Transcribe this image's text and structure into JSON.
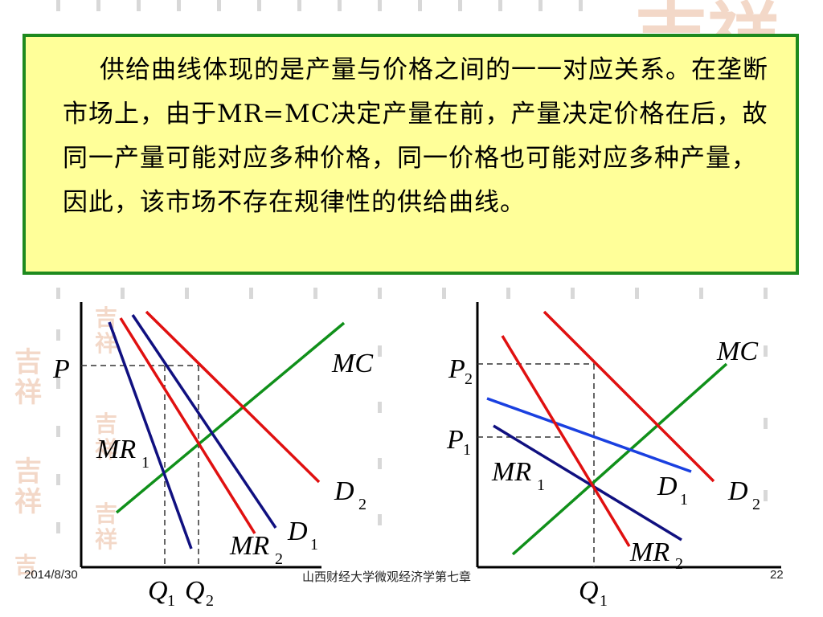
{
  "slide": {
    "paragraph": "供给曲线体现的是产量与价格之间的一一对应关系。在垄断市场上，由于MR=MC决定产量在前，产量决定价格在后，故同一产量可能对应多种价格，同一价格也可能对应多种产量，因此，该市场不存在规律性的供给曲线。",
    "footer": {
      "date": "2014/8/30",
      "center": "山西财经大学微观经济学第七章",
      "page": "22"
    }
  },
  "left_graph": {
    "P": "P",
    "MC": "MC",
    "MR1": "MR",
    "MR1_sub": "1",
    "MR2": "MR",
    "MR2_sub": "2",
    "D1": "D",
    "D1_sub": "1",
    "D2": "D",
    "D2_sub": "2",
    "Q1": "Q",
    "Q1_sub": "1",
    "Q2": "Q",
    "Q2_sub": "2"
  },
  "right_graph": {
    "P2": "P",
    "P2_sub": "2",
    "P1": "P",
    "P1_sub": "1",
    "MC": "MC",
    "MR1": "MR",
    "MR1_sub": "1",
    "MR2": "MR",
    "MR2_sub": "2",
    "D1": "D",
    "D1_sub": "1",
    "D2": "D",
    "D2_sub": "2",
    "Q1": "Q",
    "Q1_sub": "1"
  },
  "colors": {
    "demand": "#e01010",
    "marginal_revenue": "#101080",
    "marginal_revenue_alt": "#1a40e0",
    "marginal_cost": "#10901a",
    "box_bg": "#ffff99",
    "box_border": "#1e8a1e"
  }
}
